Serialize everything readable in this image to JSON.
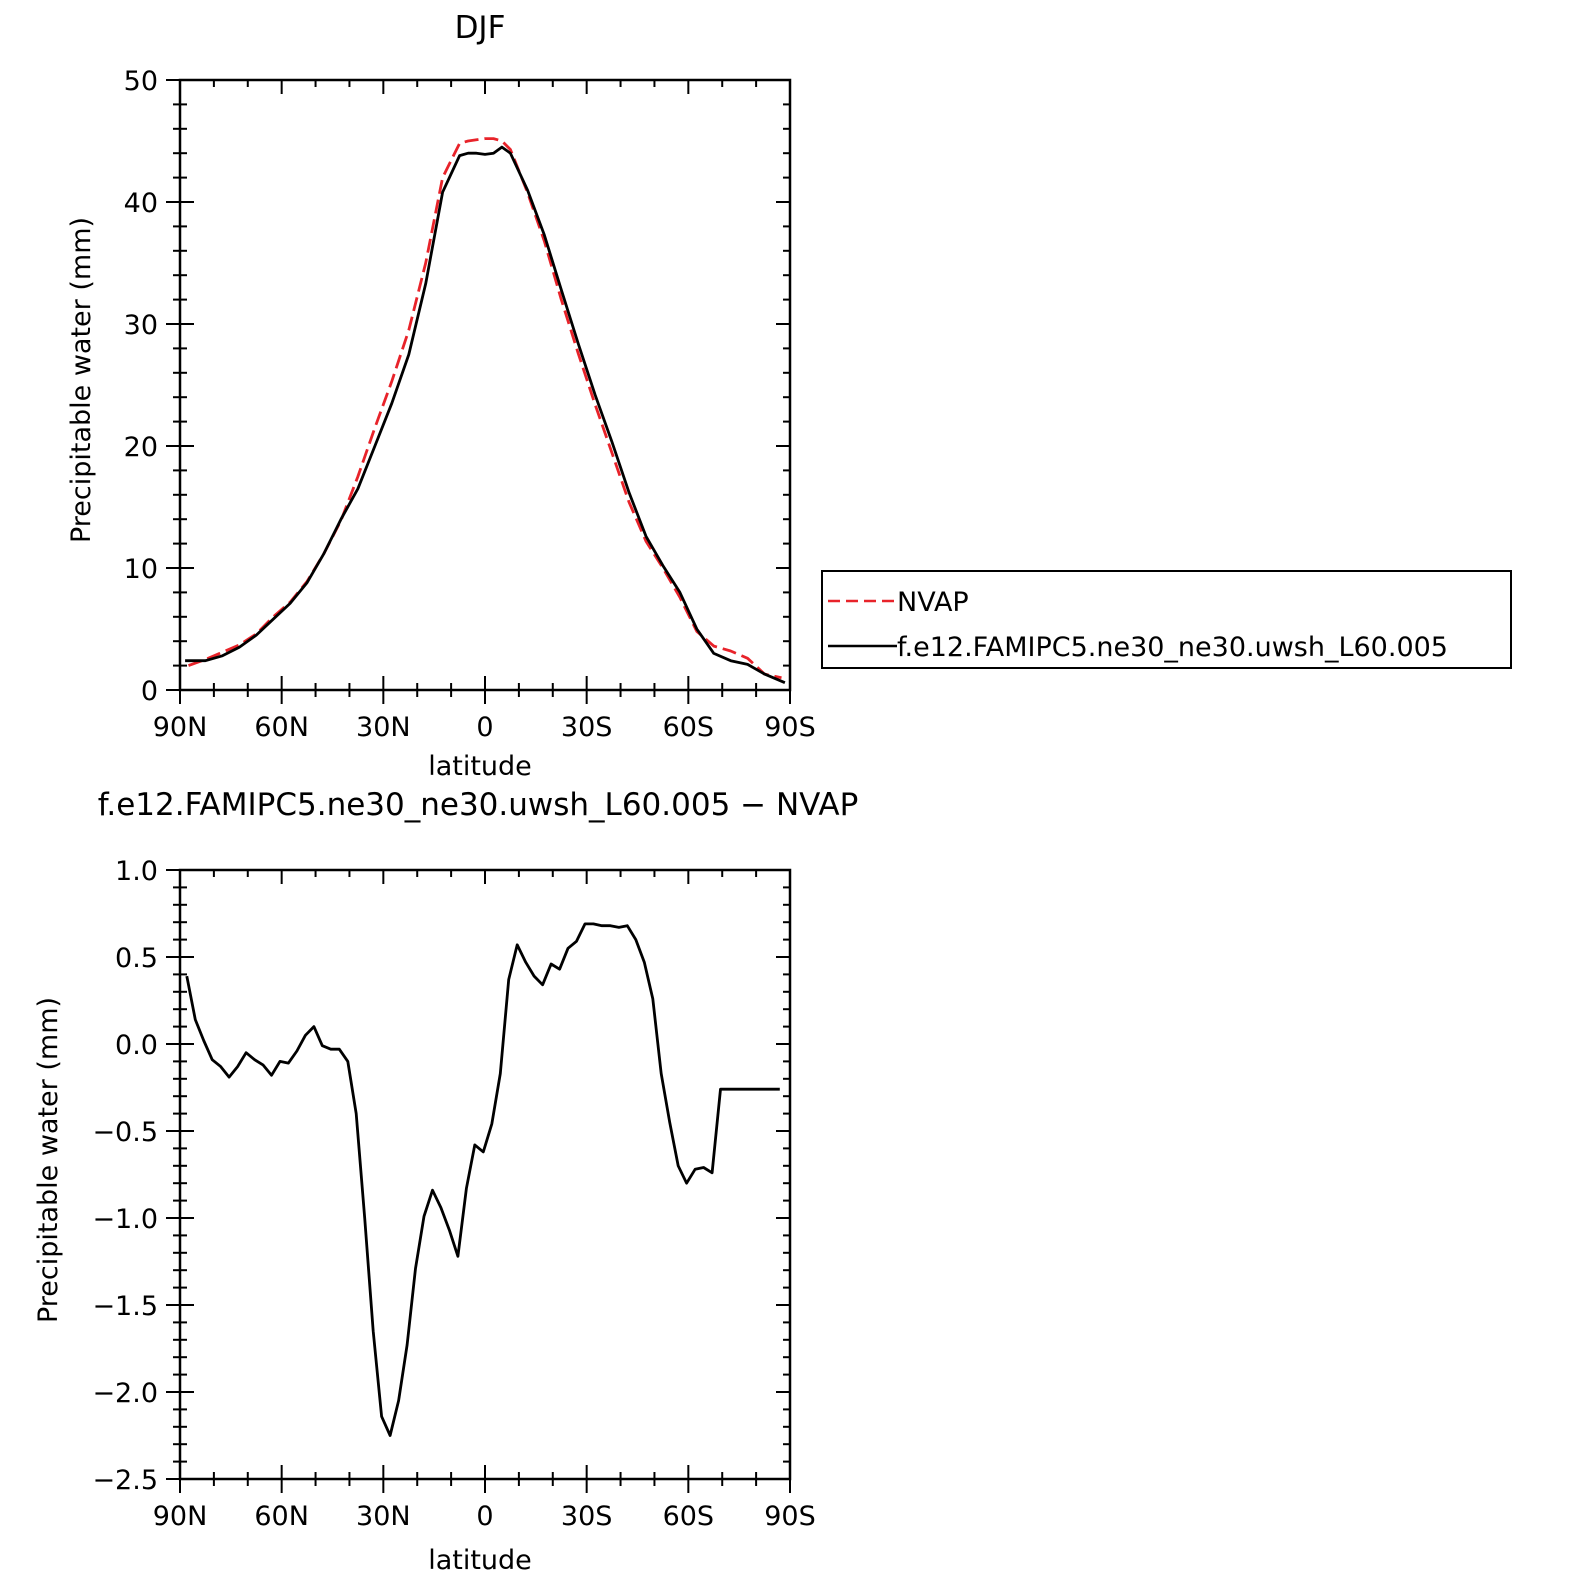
{
  "chart_data": [
    {
      "type": "line",
      "title": "DJF",
      "xlabel": "latitude",
      "ylabel": "Precipitable water (mm)",
      "xlim": [
        -90,
        90
      ],
      "ylim": [
        0,
        50
      ],
      "xticks": [
        -90,
        -60,
        -30,
        0,
        30,
        60,
        90
      ],
      "xtick_labels": [
        "90N",
        "60N",
        "30N",
        "0",
        "30S",
        "60S",
        "90S"
      ],
      "yticks": [
        0,
        10,
        20,
        30,
        40,
        50
      ],
      "ytick_labels": [
        "0",
        "10",
        "20",
        "30",
        "40",
        "50"
      ],
      "legend": {
        "placement": "right",
        "entries": [
          "NVAP",
          "f.e12.FAMIPC5.ne30_ne30.uwsh_L60.005"
        ]
      },
      "series": [
        {
          "name": "NVAP",
          "color": "#e8232a",
          "dash": "dashed",
          "x": [
            -87.5,
            -82.5,
            -77.5,
            -72.5,
            -67.5,
            -62.5,
            -57.5,
            -52.5,
            -47.5,
            -42.5,
            -37.5,
            -32.5,
            -27.5,
            -22.5,
            -17.5,
            -12.5,
            -7.5,
            -5,
            -2.5,
            0,
            2.5,
            5,
            7.5,
            12.5,
            17.5,
            22.5,
            27.5,
            32.5,
            37.5,
            42.5,
            47.5,
            52.5,
            57.5,
            62.5,
            67.5,
            72.5,
            77.5,
            82.5,
            87.5
          ],
          "y": [
            2.0,
            2.5,
            3.1,
            3.7,
            4.6,
            6.0,
            7.2,
            8.9,
            11.2,
            13.9,
            17.5,
            21.5,
            25.3,
            29.5,
            35.0,
            42.0,
            44.8,
            45.0,
            45.1,
            45.2,
            45.2,
            45.0,
            44.3,
            40.8,
            36.8,
            32.0,
            27.6,
            23.4,
            19.4,
            15.4,
            12.2,
            10.0,
            7.6,
            4.8,
            3.6,
            3.2,
            2.6,
            1.3,
            1.0
          ],
          "label_text": "NVAP"
        },
        {
          "name": "f.e12.FAMIPC5.ne30_ne30.uwsh_L60.005",
          "color": "#000000",
          "dash": "solid",
          "x": [
            -88.5,
            -82.5,
            -77.5,
            -72.5,
            -67.5,
            -62.5,
            -57.5,
            -52.5,
            -47.5,
            -42.5,
            -37.5,
            -32.5,
            -27.5,
            -22.5,
            -17.5,
            -12.5,
            -7.5,
            -5,
            -2.5,
            0,
            2.5,
            5,
            7.5,
            12.5,
            17.5,
            22.5,
            27.5,
            32.5,
            37.5,
            42.5,
            47.5,
            52.5,
            57.5,
            62.5,
            67.5,
            72.5,
            77.5,
            82.5,
            88.5
          ],
          "y": [
            2.4,
            2.4,
            2.8,
            3.5,
            4.5,
            5.8,
            7.1,
            8.8,
            11.2,
            14.0,
            16.5,
            20.0,
            23.5,
            27.5,
            33.3,
            40.8,
            43.8,
            44.0,
            44.0,
            43.9,
            44.0,
            44.5,
            44.0,
            41.0,
            37.3,
            32.8,
            28.4,
            24.2,
            20.3,
            16.2,
            12.6,
            10.2,
            8.0,
            5.0,
            3.0,
            2.4,
            2.1,
            1.3,
            0.6
          ],
          "label_text": "f.e12.FAMIPC5.ne30_ne30.uwsh_L60.005"
        }
      ]
    },
    {
      "type": "line",
      "title": "f.e12.FAMIPC5.ne30_ne30.uwsh_L60.005 − NVAP",
      "xlabel": "latitude",
      "ylabel": "Precipitable water (mm)",
      "xlim": [
        -90,
        90
      ],
      "ylim": [
        -2.5,
        1.0
      ],
      "xticks": [
        -90,
        -60,
        -30,
        0,
        30,
        60,
        90
      ],
      "xtick_labels": [
        "90N",
        "60N",
        "30N",
        "0",
        "30S",
        "60S",
        "90S"
      ],
      "yticks": [
        -2.5,
        -2.0,
        -1.5,
        -1.0,
        -0.5,
        0.0,
        0.5,
        1.0
      ],
      "ytick_labels": [
        "−2.5",
        "−2.0",
        "−1.5",
        "−1.0",
        "−0.5",
        "0.0",
        "0.5",
        "1.0"
      ],
      "series": [
        {
          "color": "#000000",
          "dash": "solid",
          "x": [
            -88,
            -85.5,
            -83,
            -80.5,
            -78,
            -75.5,
            -73,
            -70.5,
            -68,
            -65.5,
            -63,
            -60.5,
            -58,
            -55.5,
            -53,
            -50.5,
            -48,
            -45.5,
            -43,
            -40.5,
            -38,
            -35.5,
            -33,
            -30.5,
            -28,
            -25.5,
            -23,
            -20.5,
            -18,
            -15.5,
            -13,
            -10.5,
            -8,
            -5.5,
            -3,
            -0.5,
            2,
            4.5,
            7,
            9.5,
            12,
            14.5,
            17,
            19.5,
            22,
            24.5,
            27,
            29.5,
            32,
            34.5,
            37,
            39.5,
            42,
            44.5,
            47,
            49.5,
            52,
            54.5,
            57,
            59.5,
            62,
            64.5,
            67,
            69.5,
            72,
            74.5,
            77,
            79.5,
            82,
            84.5,
            87
          ],
          "y": [
            0.39,
            0.14,
            0.02,
            -0.09,
            -0.13,
            -0.19,
            -0.13,
            -0.05,
            -0.09,
            -0.12,
            -0.18,
            -0.1,
            -0.11,
            -0.04,
            0.05,
            0.1,
            -0.01,
            -0.03,
            -0.03,
            -0.1,
            -0.4,
            -1.0,
            -1.65,
            -2.14,
            -2.25,
            -2.05,
            -1.73,
            -1.29,
            -0.99,
            -0.84,
            -0.94,
            -1.07,
            -1.22,
            -0.83,
            -0.58,
            -0.62,
            -0.46,
            -0.17,
            0.37,
            0.57,
            0.47,
            0.39,
            0.34,
            0.46,
            0.43,
            0.55,
            0.59,
            0.69,
            0.69,
            0.68,
            0.68,
            0.67,
            0.68,
            0.6,
            0.47,
            0.26,
            -0.17,
            -0.45,
            -0.7,
            -0.8,
            -0.72,
            -0.71,
            -0.74,
            -0.26,
            -0.26,
            -0.26,
            -0.26,
            -0.26,
            -0.26,
            -0.26,
            -0.26
          ]
        }
      ]
    }
  ]
}
